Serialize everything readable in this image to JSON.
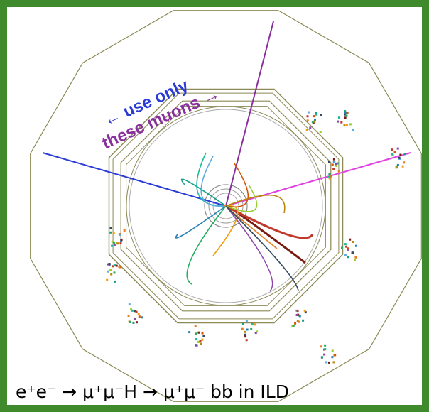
{
  "annotations": {
    "use_only": "← use only",
    "these_muons": "these muons →"
  },
  "caption": "e⁺e⁻ → μ⁺μ⁻H → μ⁺μ⁻ bb in ILD"
}
